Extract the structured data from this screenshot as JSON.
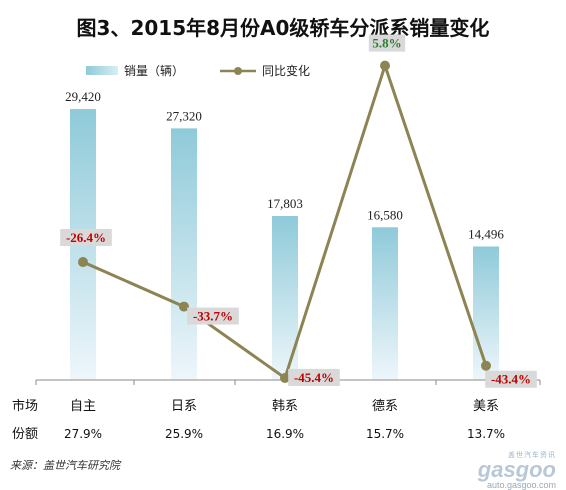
{
  "title": "图3、2015年8月份A0级轿车分派系销量变化",
  "chart_data": {
    "type": "bar+line",
    "categories": [
      "自主",
      "日系",
      "韩系",
      "德系",
      "美系"
    ],
    "series": [
      {
        "name": "销量（辆）",
        "kind": "bar",
        "values": [
          29420,
          27320,
          17803,
          16580,
          14496
        ],
        "labels": [
          "29,420",
          "27,320",
          "17,803",
          "16,580",
          "14,496"
        ]
      },
      {
        "name": "同比变化",
        "kind": "line",
        "values": [
          -26.4,
          -33.7,
          -45.4,
          5.8,
          -43.4
        ],
        "labels": [
          "-26.4%",
          "-33.7%",
          "-45.4%",
          "5.8%",
          "-43.4%"
        ]
      }
    ],
    "bar_ylim": [
      0,
      38000
    ],
    "line_ylim": [
      -50,
      10
    ],
    "legend_position": "top-left"
  },
  "table": {
    "row1_label": "市场",
    "row2_label": "份额",
    "shares": [
      "27.9%",
      "25.9%",
      "16.9%",
      "15.7%",
      "13.7%"
    ]
  },
  "colors": {
    "bar_top": "#8fcad9",
    "bar_bottom": "#eef6fb",
    "line": "#8c8453",
    "neg_label": "#c00000",
    "pos_label": "#2e7d32",
    "label_box": "#d9d9d9"
  },
  "source": "来源：盖世汽车研究院",
  "watermark": {
    "brand": "gasgoo",
    "tagline": "盖世汽车资讯",
    "url": "auto.gasgoo.com"
  }
}
